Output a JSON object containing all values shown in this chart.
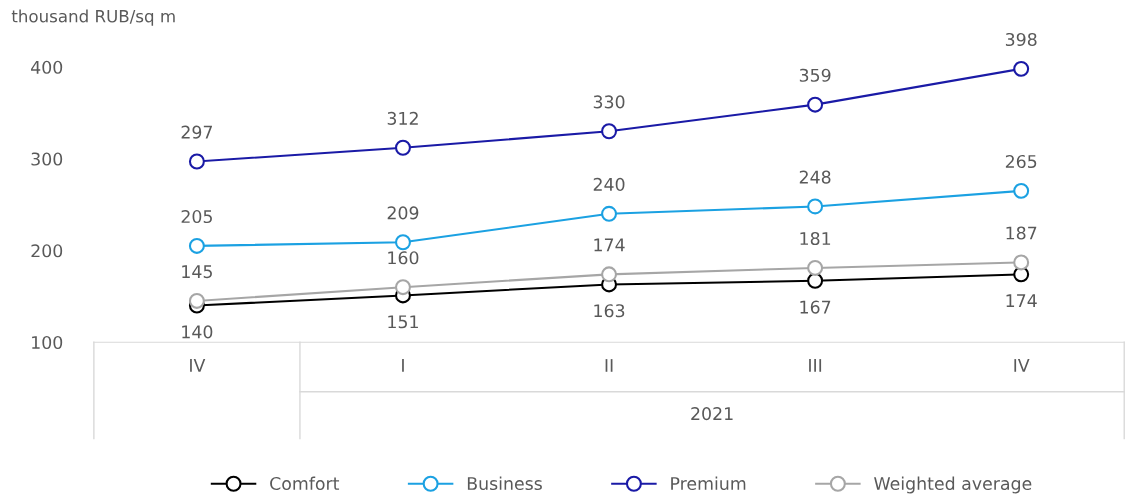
{
  "chart_data": {
    "type": "line",
    "ylabel": "thousand RUB/sq m",
    "categories": [
      "IV",
      "I",
      "II",
      "III",
      "IV"
    ],
    "series": [
      {
        "name": "Comfort",
        "color": "#000000",
        "values": [
          140,
          151,
          163,
          167,
          174
        ]
      },
      {
        "name": "Business",
        "color": "#1ba1e2",
        "values": [
          205,
          209,
          240,
          248,
          265
        ]
      },
      {
        "name": "Premium",
        "color": "#1a1aa6",
        "values": [
          297,
          312,
          330,
          359,
          398
        ]
      },
      {
        "name": "Weighted average",
        "color": "#a6a6a6",
        "values": [
          145,
          160,
          174,
          181,
          187
        ]
      }
    ],
    "annotations": [
      "2021"
    ],
    "ylim": [
      100,
      400
    ],
    "yticks": [
      100,
      200,
      300,
      400
    ],
    "grid": false,
    "legend": "bottom",
    "marker": "circle",
    "line_style": "solid",
    "data_labels": true
  }
}
